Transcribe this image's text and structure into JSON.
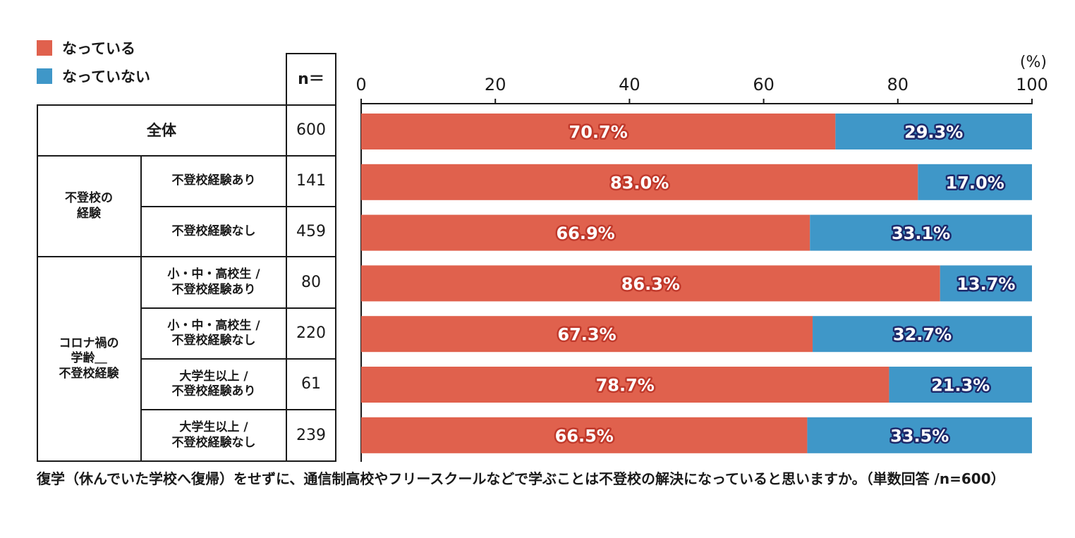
{
  "legend": [
    {
      "label": "なっている",
      "color": "#e0614d"
    },
    {
      "label": "なっていない",
      "color": "#3f97c8"
    }
  ],
  "table": {
    "n_header": "n＝",
    "total": {
      "label": "全体",
      "n": "600"
    },
    "groups": [
      {
        "label": "不登校の\n経験",
        "rows": [
          {
            "label": "不登校経験あり",
            "n": "141"
          },
          {
            "label": "不登校経験なし",
            "n": "459"
          }
        ]
      },
      {
        "label": "コロナ禍の\n学齢＿\n不登校経験",
        "rows": [
          {
            "label": "小・中・高校生 /\n不登校経験あり",
            "n": "80"
          },
          {
            "label": "小・中・高校生 /\n不登校経験なし",
            "n": "220"
          },
          {
            "label": "大学生以上 /\n不登校経験あり",
            "n": "61"
          },
          {
            "label": "大学生以上 /\n不登校経験なし",
            "n": "239"
          }
        ]
      }
    ]
  },
  "chart_data": {
    "type": "bar",
    "orientation": "horizontal",
    "stacked": true,
    "xlim": [
      0,
      100
    ],
    "ticks": [
      "0",
      "20",
      "40",
      "60",
      "80",
      "100"
    ],
    "unit": "(%)",
    "categories": [
      "全体",
      "不登校経験あり",
      "不登校経験なし",
      "小・中・高校生 / 不登校経験あり",
      "小・中・高校生 / 不登校経験なし",
      "大学生以上 / 不登校経験あり",
      "大学生以上 / 不登校経験なし"
    ],
    "series": [
      {
        "name": "なっている",
        "color": "#e0614d",
        "label_stroke": "#c0392b",
        "values": [
          70.7,
          83.0,
          66.9,
          86.3,
          67.3,
          78.7,
          66.5
        ],
        "labels": [
          "70.7%",
          "83.0%",
          "66.9%",
          "86.3%",
          "67.3%",
          "78.7%",
          "66.5%"
        ]
      },
      {
        "name": "なっていない",
        "color": "#3f97c8",
        "label_stroke": "#1d2a6b",
        "values": [
          29.3,
          17.0,
          33.1,
          13.7,
          32.7,
          21.3,
          33.5
        ],
        "labels": [
          "29.3%",
          "17.0%",
          "33.1%",
          "13.7%",
          "32.7%",
          "21.3%",
          "33.5%"
        ]
      }
    ],
    "grid": false,
    "legend_position": "top-left"
  },
  "caption": "復学（休んでいた学校へ復帰）をせずに、通信制高校やフリースクールなどで学ぶことは不登校の解決になっていると思いますか。（単数回答 /n=600）"
}
